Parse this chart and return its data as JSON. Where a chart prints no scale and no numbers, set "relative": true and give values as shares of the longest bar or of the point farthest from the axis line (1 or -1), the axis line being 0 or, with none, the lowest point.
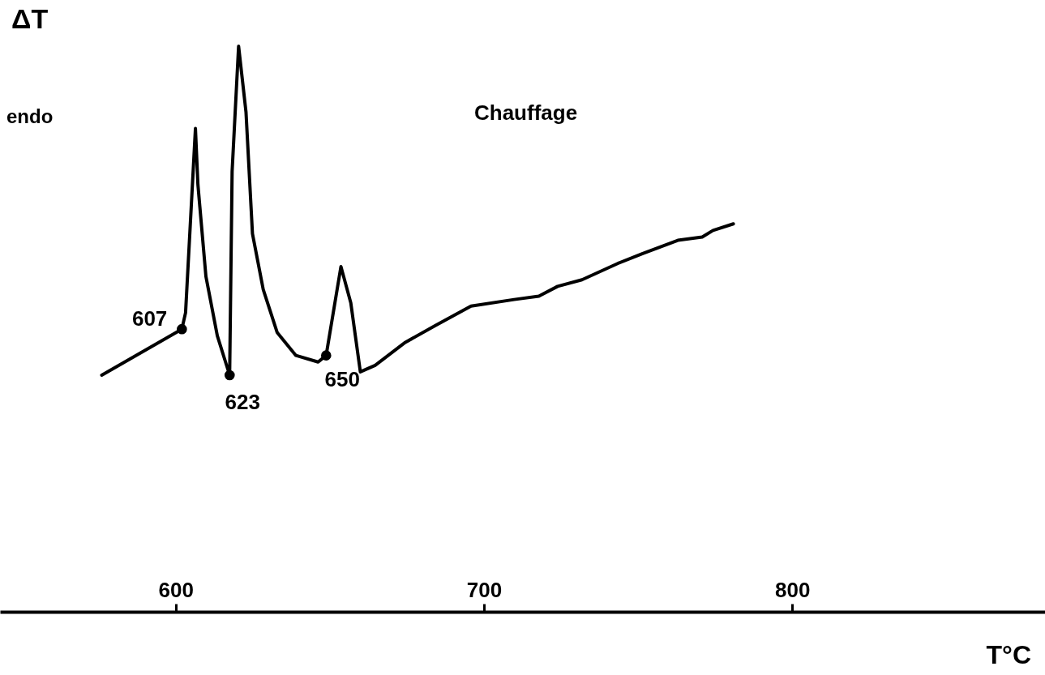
{
  "chart_data": {
    "type": "line",
    "relative": true,
    "ylabel": "ΔT",
    "xlabel": "T°C",
    "xlim": [
      543,
      882
    ],
    "xticks": [
      600,
      700,
      800
    ],
    "grid": false,
    "annotations": [
      "endo",
      "Chauffage",
      {
        "text": "607",
        "x": 602,
        "y": 0.14
      },
      {
        "text": "623",
        "x": 617.5,
        "y": 0
      },
      {
        "text": "650",
        "x": 648.8,
        "y": 0.06
      }
    ],
    "series": [
      {
        "color": "#000000",
        "x": [
          576,
          602,
          603.2,
          606.4,
          607.2,
          609.8,
          613.5,
          617.5,
          618.3,
          620.4,
          622.8,
          624.9,
          628.4,
          632.9,
          639.0,
          646.2,
          648.8,
          653.6,
          656.8,
          659.9,
          664.7,
          674.5,
          684.1,
          695.8,
          709.8,
          717.8,
          723.9,
          731.8,
          743.5,
          751.5,
          762.9,
          770.8,
          774.3,
          780.9
        ],
        "values": [
          0,
          0.14,
          0.19,
          0.75,
          0.58,
          0.3,
          0.12,
          0,
          0.62,
          1.0,
          0.8,
          0.43,
          0.26,
          0.13,
          0.06,
          0.04,
          0.06,
          0.33,
          0.22,
          0.01,
          0.03,
          0.1,
          0.15,
          0.21,
          0.23,
          0.24,
          0.27,
          0.29,
          0.34,
          0.37,
          0.41,
          0.42,
          0.44,
          0.46
        ]
      },
      {
        "type": "scatter",
        "color": "#000000",
        "marker": "circle",
        "x": [
          602,
          617.5,
          648.8
        ],
        "values": [
          0.14,
          0,
          0.06
        ]
      }
    ]
  }
}
